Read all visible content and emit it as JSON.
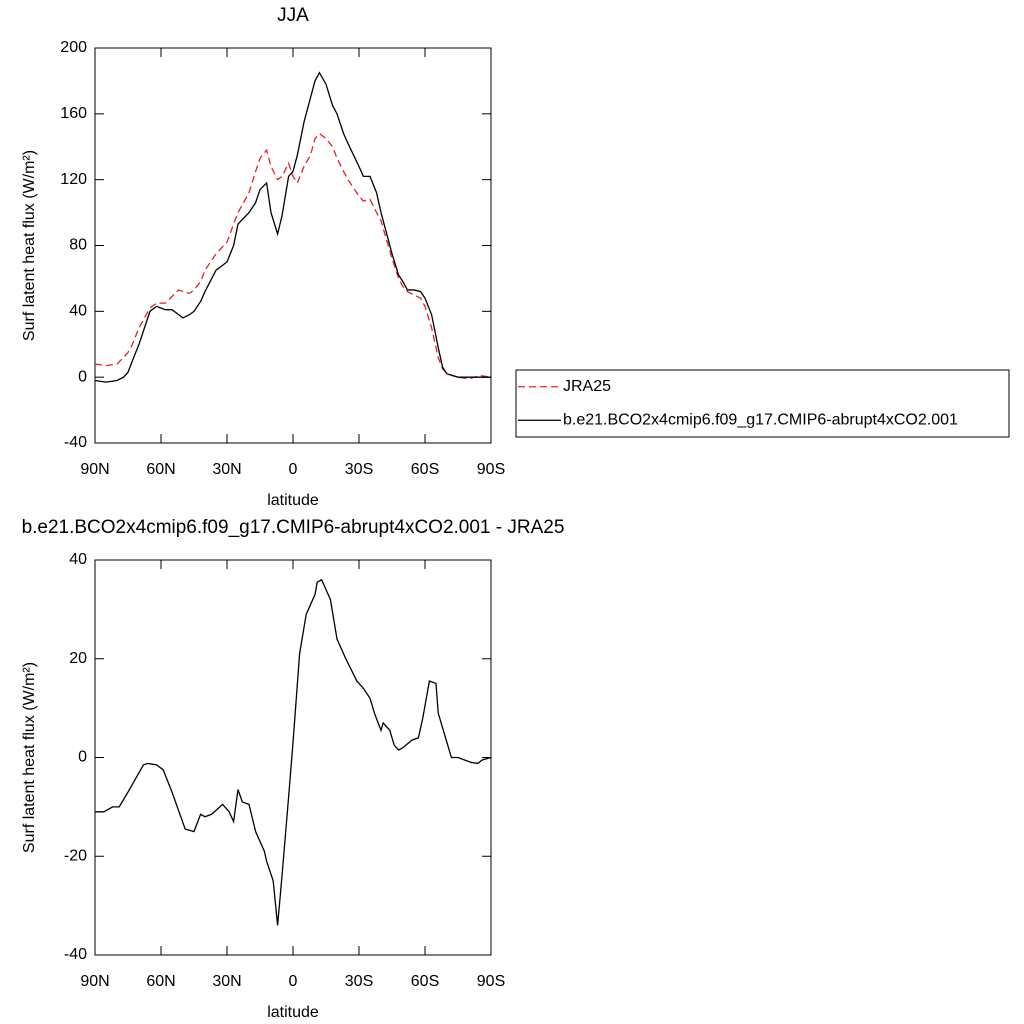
{
  "chart_data": [
    {
      "type": "line",
      "title": "JJA",
      "xlabel": "latitude",
      "ylabel": "Surf latent heat flux (W/m²)",
      "xlim": [
        90,
        -90
      ],
      "xticks": [
        {
          "value": 90,
          "label": "90N"
        },
        {
          "value": 60,
          "label": "60N"
        },
        {
          "value": 30,
          "label": "30N"
        },
        0,
        {
          "value": -30,
          "label": "30S"
        },
        {
          "value": -60,
          "label": "60S"
        },
        {
          "value": -90,
          "label": "90S"
        }
      ],
      "ylim": [
        -40,
        200
      ],
      "yticks": [
        -40,
        0,
        40,
        80,
        120,
        160,
        200
      ],
      "legend": "right",
      "x": [
        90,
        85,
        80,
        77,
        75,
        73,
        70,
        65,
        62,
        58,
        55,
        52,
        50,
        47,
        45,
        42,
        40,
        35,
        30,
        27,
        25,
        20,
        17,
        15,
        12,
        10,
        7,
        5,
        2,
        0,
        -2,
        -5,
        -8,
        -10,
        -12,
        -15,
        -18,
        -20,
        -23,
        -25,
        -30,
        -32,
        -35,
        -38,
        -40,
        -45,
        -48,
        -50,
        -52,
        -55,
        -58,
        -60,
        -63,
        -66,
        -68,
        -70,
        -75,
        -80,
        -85,
        -90
      ],
      "series": [
        {
          "name": "JRA25",
          "color": "#e8202a",
          "dashed": true,
          "values": [
            8,
            7,
            8,
            12,
            15,
            20,
            30,
            42,
            45,
            45,
            49,
            53,
            52,
            51,
            53,
            58,
            65,
            75,
            82,
            93,
            100,
            112,
            125,
            133,
            138,
            128,
            120,
            122,
            130,
            122,
            118,
            128,
            135,
            145,
            148,
            145,
            140,
            133,
            125,
            120,
            110,
            107,
            108,
            100,
            95,
            72,
            60,
            55,
            52,
            50,
            48,
            43,
            30,
            12,
            5,
            2,
            0,
            -1,
            1,
            0
          ]
        },
        {
          "name": "b.e21.BCO2x4cmip6.f09_g17.CMIP6-abrupt4xCO2.001",
          "color": "#000000",
          "dashed": false,
          "values": [
            -2,
            -3,
            -2,
            0,
            3,
            10,
            20,
            40,
            43,
            41,
            41,
            38,
            36,
            38,
            40,
            46,
            52,
            65,
            70,
            80,
            93,
            100,
            106,
            114,
            118,
            100,
            87,
            98,
            122,
            125,
            135,
            155,
            170,
            180,
            185,
            178,
            165,
            160,
            148,
            142,
            128,
            122,
            122,
            112,
            100,
            75,
            62,
            58,
            53,
            53,
            52,
            48,
            38,
            18,
            6,
            2,
            0,
            0,
            0,
            0
          ]
        }
      ]
    },
    {
      "type": "line",
      "title": "b.e21.BCO2x4cmip6.f09_g17.CMIP6-abrupt4xCO2.001 - JRA25",
      "xlabel": "latitude",
      "ylabel": "Surf latent heat flux (W/m²)",
      "xlim": [
        90,
        -90
      ],
      "xticks": [
        {
          "value": 90,
          "label": "90N"
        },
        {
          "value": 60,
          "label": "60N"
        },
        {
          "value": 30,
          "label": "30N"
        },
        0,
        {
          "value": -30,
          "label": "30S"
        },
        {
          "value": -60,
          "label": "60S"
        },
        {
          "value": -90,
          "label": "90S"
        }
      ],
      "ylim": [
        -40,
        40
      ],
      "yticks": [
        -40,
        -20,
        0,
        20,
        40
      ],
      "x": [
        90,
        86,
        82,
        79,
        75,
        68,
        66,
        62,
        59,
        55,
        49,
        45,
        42,
        40,
        37,
        32,
        29,
        27,
        25,
        23,
        20,
        17,
        13,
        12,
        9,
        7,
        5,
        2,
        0,
        -3,
        -6,
        -8,
        -10,
        -11,
        -13,
        -17,
        -20,
        -24,
        -29,
        -32,
        -35,
        -37,
        -40,
        -41,
        -44,
        -46,
        -48,
        -50,
        -54,
        -57,
        -59,
        -62,
        -65,
        -66,
        -70,
        -72,
        -75,
        -78,
        -81,
        -84,
        -86,
        -90
      ],
      "series": [
        {
          "color": "#000000",
          "dashed": false,
          "values": [
            -11,
            -11,
            -10,
            -10,
            -7,
            -1.5,
            -1.2,
            -1.5,
            -2.5,
            -7,
            -14.5,
            -15,
            -11.5,
            -12,
            -11.5,
            -9.5,
            -11,
            -13,
            -6.5,
            -9,
            -9.5,
            -15,
            -19,
            -21,
            -25,
            -34,
            -24,
            -8,
            3,
            21,
            29,
            31,
            33,
            35.5,
            36,
            32,
            24,
            20,
            15.5,
            14,
            12,
            9,
            5.5,
            7,
            5.5,
            2.5,
            1.5,
            2,
            3.5,
            4,
            8,
            15.5,
            15,
            9,
            3,
            0,
            0,
            -0.5,
            -1,
            -1.2,
            -0.5,
            0
          ]
        }
      ]
    }
  ]
}
